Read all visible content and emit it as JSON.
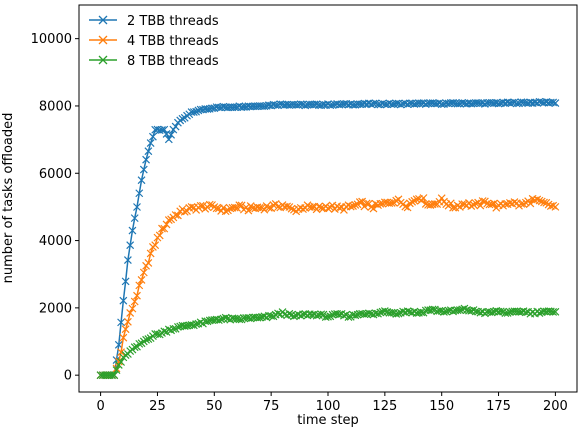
{
  "chart_data": {
    "type": "line",
    "xlabel": "time step",
    "ylabel": "number of tasks offloaded",
    "xlim": [
      -9.5,
      209.5
    ],
    "ylim": [
      -500,
      11000
    ],
    "xticks": [
      0,
      25,
      50,
      75,
      100,
      125,
      150,
      175,
      200
    ],
    "yticks": [
      0,
      2000,
      4000,
      6000,
      8000,
      10000
    ],
    "legend_position": "top-left",
    "grid": false,
    "series": [
      {
        "name": "2 TBB threads",
        "color": "#1f77b4",
        "marker": "x",
        "points": [
          [
            0,
            0
          ],
          [
            4,
            0
          ],
          [
            6,
            0
          ],
          [
            8,
            900
          ],
          [
            10,
            2200
          ],
          [
            12,
            3400
          ],
          [
            14,
            4300
          ],
          [
            16,
            5000
          ],
          [
            18,
            5800
          ],
          [
            20,
            6400
          ],
          [
            22,
            6900
          ],
          [
            24,
            7300
          ],
          [
            26,
            7300
          ],
          [
            28,
            7300
          ],
          [
            30,
            7000
          ],
          [
            32,
            7300
          ],
          [
            34,
            7500
          ],
          [
            36,
            7600
          ],
          [
            38,
            7700
          ],
          [
            40,
            7800
          ],
          [
            45,
            7900
          ],
          [
            50,
            7950
          ],
          [
            60,
            7980
          ],
          [
            70,
            8000
          ],
          [
            80,
            8050
          ],
          [
            90,
            8030
          ],
          [
            100,
            8040
          ],
          [
            110,
            8050
          ],
          [
            120,
            8060
          ],
          [
            130,
            8060
          ],
          [
            140,
            8070
          ],
          [
            150,
            8070
          ],
          [
            160,
            8080
          ],
          [
            170,
            8080
          ],
          [
            180,
            8090
          ],
          [
            190,
            8100
          ],
          [
            195,
            8110
          ],
          [
            200,
            8100
          ]
        ]
      },
      {
        "name": "4 TBB threads",
        "color": "#ff7f0e",
        "marker": "x",
        "points": [
          [
            0,
            0
          ],
          [
            4,
            0
          ],
          [
            6,
            0
          ],
          [
            8,
            400
          ],
          [
            10,
            1100
          ],
          [
            12,
            1600
          ],
          [
            14,
            2000
          ],
          [
            16,
            2400
          ],
          [
            18,
            2800
          ],
          [
            20,
            3200
          ],
          [
            22,
            3600
          ],
          [
            24,
            3900
          ],
          [
            26,
            4200
          ],
          [
            28,
            4400
          ],
          [
            30,
            4600
          ],
          [
            32,
            4700
          ],
          [
            35,
            4850
          ],
          [
            40,
            4950
          ],
          [
            45,
            5000
          ],
          [
            50,
            5000
          ],
          [
            55,
            4900
          ],
          [
            60,
            5000
          ],
          [
            65,
            4950
          ],
          [
            70,
            4980
          ],
          [
            75,
            5000
          ],
          [
            80,
            5050
          ],
          [
            85,
            4900
          ],
          [
            90,
            5000
          ],
          [
            95,
            4950
          ],
          [
            100,
            5020
          ],
          [
            105,
            4950
          ],
          [
            110,
            5000
          ],
          [
            115,
            5100
          ],
          [
            120,
            5000
          ],
          [
            125,
            5100
          ],
          [
            130,
            5200
          ],
          [
            135,
            5050
          ],
          [
            140,
            5300
          ],
          [
            145,
            5050
          ],
          [
            150,
            5200
          ],
          [
            155,
            5000
          ],
          [
            160,
            5100
          ],
          [
            165,
            5050
          ],
          [
            170,
            5150
          ],
          [
            175,
            5000
          ],
          [
            180,
            5150
          ],
          [
            185,
            5050
          ],
          [
            190,
            5200
          ],
          [
            195,
            5100
          ],
          [
            200,
            5000
          ]
        ]
      },
      {
        "name": "8 TBB threads",
        "color": "#2ca02c",
        "marker": "x",
        "points": [
          [
            0,
            0
          ],
          [
            4,
            0
          ],
          [
            6,
            0
          ],
          [
            8,
            300
          ],
          [
            10,
            500
          ],
          [
            12,
            650
          ],
          [
            15,
            800
          ],
          [
            18,
            950
          ],
          [
            21,
            1100
          ],
          [
            24,
            1200
          ],
          [
            27,
            1250
          ],
          [
            30,
            1350
          ],
          [
            33,
            1400
          ],
          [
            36,
            1450
          ],
          [
            40,
            1500
          ],
          [
            45,
            1550
          ],
          [
            50,
            1650
          ],
          [
            55,
            1680
          ],
          [
            60,
            1650
          ],
          [
            65,
            1700
          ],
          [
            70,
            1700
          ],
          [
            75,
            1750
          ],
          [
            80,
            1850
          ],
          [
            85,
            1750
          ],
          [
            90,
            1800
          ],
          [
            95,
            1800
          ],
          [
            100,
            1750
          ],
          [
            105,
            1800
          ],
          [
            110,
            1750
          ],
          [
            115,
            1850
          ],
          [
            120,
            1800
          ],
          [
            125,
            1900
          ],
          [
            130,
            1850
          ],
          [
            135,
            1900
          ],
          [
            140,
            1850
          ],
          [
            145,
            1950
          ],
          [
            150,
            1900
          ],
          [
            155,
            1900
          ],
          [
            160,
            1950
          ],
          [
            165,
            1900
          ],
          [
            170,
            1850
          ],
          [
            175,
            1900
          ],
          [
            180,
            1850
          ],
          [
            185,
            1900
          ],
          [
            190,
            1850
          ],
          [
            195,
            1900
          ],
          [
            200,
            1850
          ]
        ]
      }
    ]
  }
}
